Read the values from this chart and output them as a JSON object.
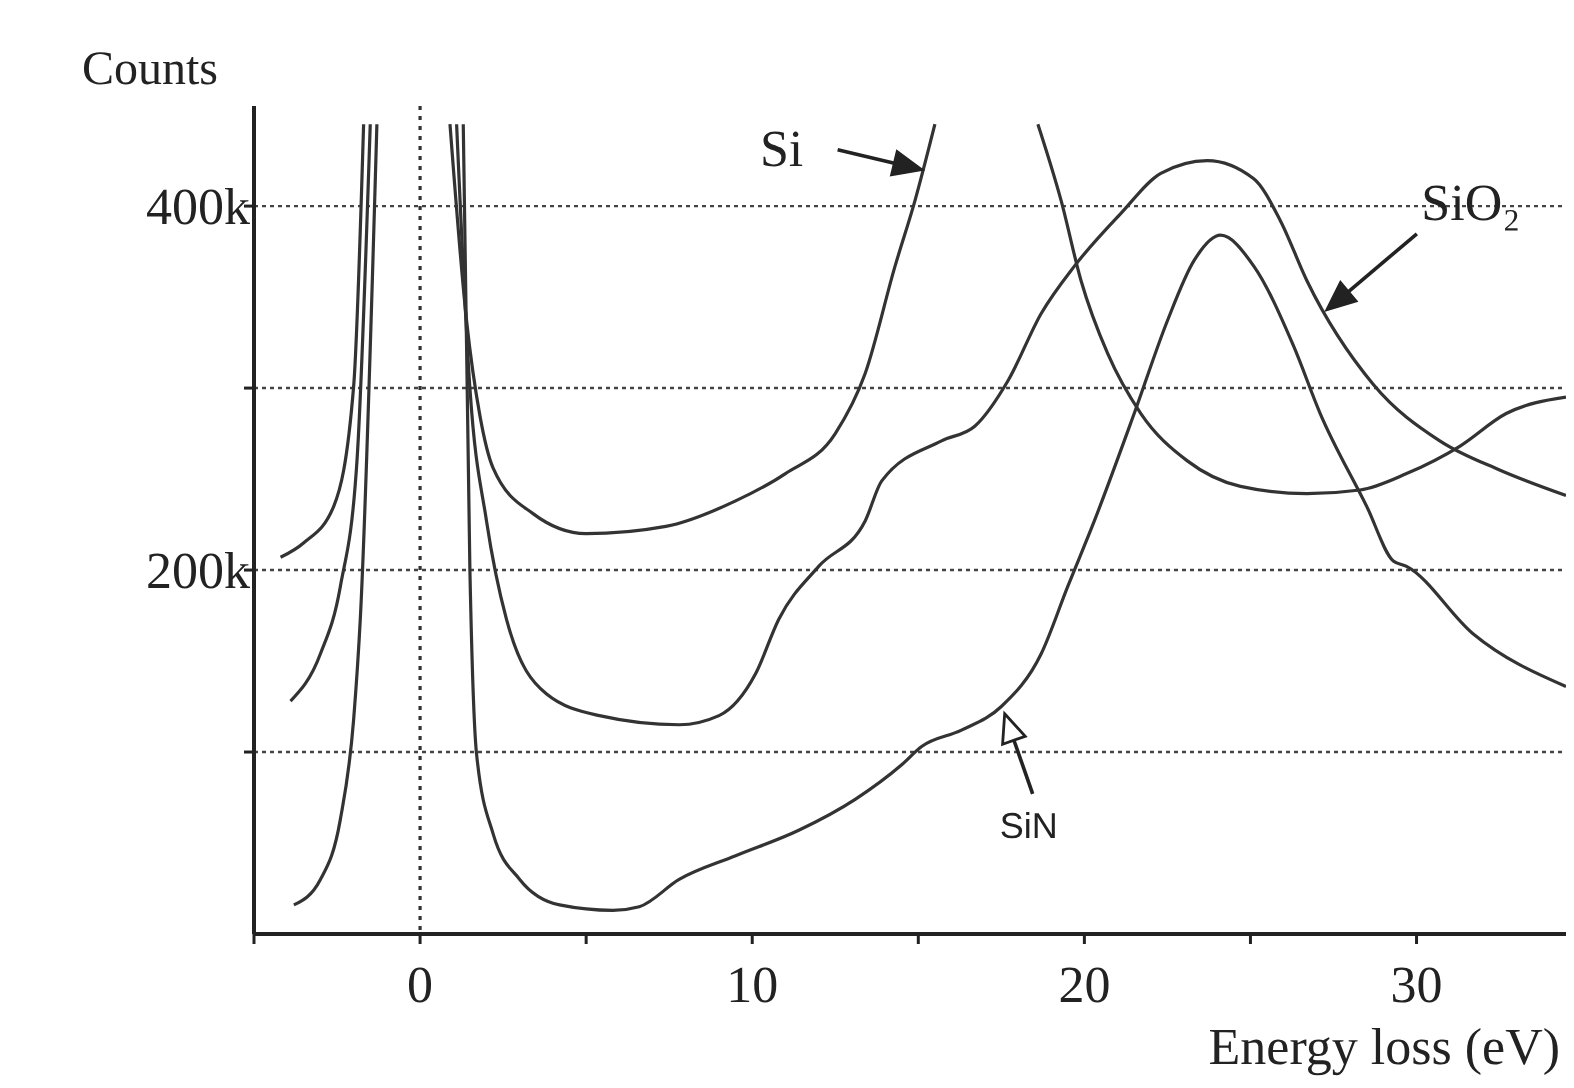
{
  "chart_data": {
    "type": "line",
    "xlabel": "Energy loss (eV)",
    "ylabel": "Counts",
    "xlim": [
      -5,
      34.5
    ],
    "ylim": [
      0,
      455000
    ],
    "xticks": [
      {
        "value": -5,
        "label": null
      },
      0,
      {
        "value": 5,
        "label": null
      },
      10,
      {
        "value": 15,
        "label": null
      },
      20,
      {
        "value": 25,
        "label": null
      },
      30
    ],
    "yticks": [
      {
        "value": 100000,
        "label": null
      },
      {
        "value": 200000,
        "label": "200k"
      },
      {
        "value": 300000,
        "label": null
      },
      {
        "value": 400000,
        "label": "400k"
      }
    ],
    "grid": "y",
    "marker": "none",
    "line_style": "solid",
    "ref_lines": [
      {
        "axis": "x",
        "value": 0,
        "line_style": "dotted",
        "color": "#333333"
      }
    ],
    "series": [
      {
        "color": "#333333",
        "x": [
          -4.2,
          -3.5,
          -2.6,
          -2.0,
          -1.7,
          -0.4,
          0.9,
          1.4,
          1.8,
          2.2,
          3.4,
          5.0,
          7.4,
          9.5,
          11,
          12.5,
          13.4,
          14.3,
          14.9,
          15.5,
          17,
          18.6,
          19.3,
          19.9,
          20.7,
          21.7,
          23.1,
          24.7,
          26.7,
          28.3,
          29.7,
          31.3,
          32.7,
          34.5
        ],
        "values": [
          207000,
          215000,
          235000,
          301000,
          445000,
          null,
          445000,
          337000,
          285000,
          256000,
          231000,
          220000,
          224000,
          238000,
          253000,
          275000,
          308000,
          367000,
          403000,
          445000,
          null,
          445000,
          403000,
          359000,
          319000,
          286000,
          260000,
          246000,
          242000,
          244000,
          253000,
          268000,
          286000,
          295000
        ]
      },
      {
        "color": "#333333",
        "x": [
          -3.9,
          -3.0,
          -2.4,
          -1.9,
          -1.5,
          -0.2,
          1.1,
          1.5,
          2.0,
          2.6,
          3.8,
          5.4,
          7.8,
          9.0,
          10.1,
          10.8,
          12.0,
          13.4,
          13.9,
          15.7,
          16.7,
          17.7,
          18.7,
          19.7,
          21.1,
          22.3,
          23.7,
          25.1,
          25.9,
          26.7,
          28.7,
          30.7,
          32.5,
          34.5
        ],
        "values": [
          128000,
          154000,
          191000,
          260000,
          445000,
          null,
          445000,
          300000,
          227000,
          173000,
          132000,
          120000,
          115000,
          120000,
          143000,
          173000,
          202000,
          227000,
          249000,
          271000,
          279000,
          304000,
          341000,
          367000,
          396000,
          418000,
          425000,
          415000,
          392000,
          359000,
          302000,
          271000,
          255000,
          241000
        ]
      },
      {
        "color": "#333333",
        "x": [
          -3.8,
          -3.0,
          -2.4,
          -2.0,
          -1.8,
          -1.3,
          0,
          1.3,
          1.5,
          1.7,
          2.2,
          3.0,
          4.2,
          5.8,
          6.6,
          7.8,
          9.5,
          11.4,
          13.1,
          14.5,
          15.1,
          16.3,
          17.5,
          18.7,
          19.5,
          20.3,
          21.5,
          22.5,
          23.3,
          24.1,
          25.1,
          26.3,
          27.1,
          28.5,
          29.3,
          29.7,
          31.7,
          34.5
        ],
        "values": [
          16000,
          30000,
          63000,
          118000,
          173000,
          445000,
          null,
          445000,
          200000,
          99000,
          55000,
          30000,
          16000,
          13000,
          15000,
          30000,
          43000,
          57000,
          74000,
          93000,
          103000,
          112000,
          125000,
          154000,
          191000,
          227000,
          286000,
          337000,
          370000,
          384000,
          367000,
          323000,
          286000,
          235000,
          205000,
          202000,
          165000,
          136000
        ]
      }
    ],
    "annotations": [
      {
        "text": "Si",
        "x": 15.1,
        "y": 420000
      },
      {
        "text": "SiO₂",
        "x": 27.3,
        "y": 343000
      },
      {
        "text": "SiN",
        "x": 17.6,
        "y": 121000
      }
    ]
  }
}
